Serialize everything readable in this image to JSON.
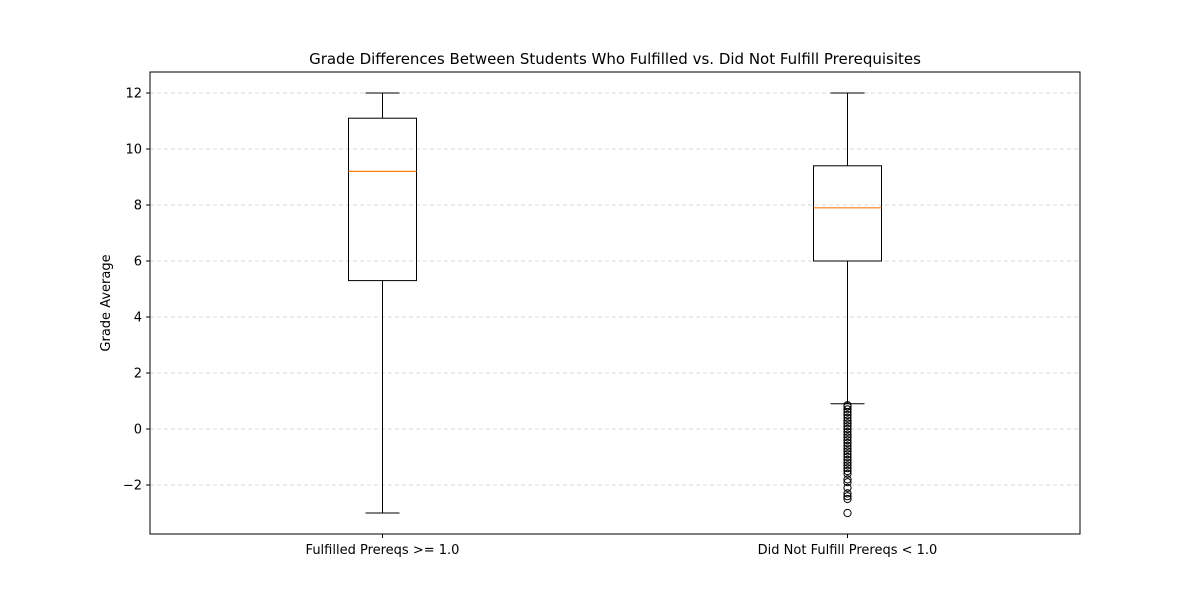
{
  "chart_data": {
    "type": "box",
    "title": "Grade Differences Between Students Who Fulfilled vs. Did Not Fulfill Prerequisites",
    "xlabel": "",
    "ylabel": "Grade Average",
    "ylim": [
      -3.75,
      12.75
    ],
    "yticks": [
      -2,
      0,
      2,
      4,
      6,
      8,
      10,
      12
    ],
    "grid": "y-dashed",
    "categories": [
      "Fulfilled Prereqs >= 1.0",
      "Did Not Fulfill Prereqs < 1.0"
    ],
    "boxes": [
      {
        "label": "Fulfilled Prereqs >= 1.0",
        "whisker_low": -3.0,
        "q1": 5.3,
        "median": 9.2,
        "q3": 11.1,
        "whisker_high": 12.0,
        "outliers": []
      },
      {
        "label": "Did Not Fulfill Prereqs < 1.0",
        "whisker_low": 0.9,
        "q1": 6.0,
        "median": 7.9,
        "q3": 9.4,
        "whisker_high": 12.0,
        "outliers": [
          0.85,
          0.8,
          0.7,
          0.6,
          0.5,
          0.4,
          0.3,
          0.2,
          0.1,
          0.0,
          -0.1,
          -0.2,
          -0.3,
          -0.4,
          -0.5,
          -0.6,
          -0.7,
          -0.8,
          -0.9,
          -1.0,
          -1.1,
          -1.2,
          -1.3,
          -1.4,
          -1.5,
          -1.6,
          -1.8,
          -1.9,
          -2.1,
          -2.3,
          -2.4,
          -2.5,
          -3.0
        ]
      }
    ],
    "colors": {
      "box": "#000000",
      "median": "#ff7f0e",
      "grid": "#cccccc"
    }
  }
}
